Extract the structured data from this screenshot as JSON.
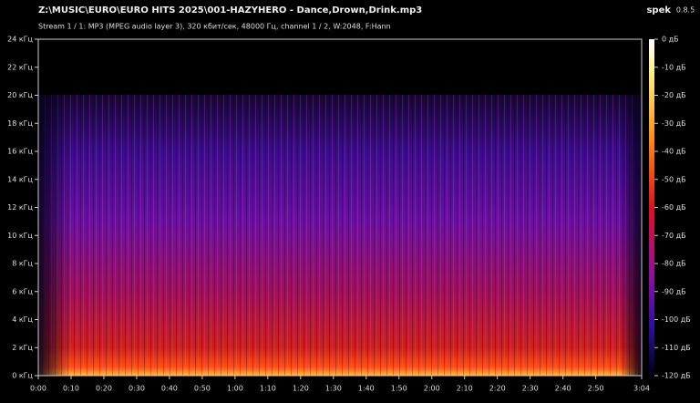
{
  "header": {
    "title": "Z:\\MUSIC\\EURO\\EURO HITS 2025\\001-HAZYHERO - Dance,Drown,Drink.mp3",
    "info": "Stream 1 / 1: MP3 (MPEG audio layer 3), 320 кбит/сек, 48000 Гц, channel 1 / 2, W:2048, F:Hann",
    "app": "spek",
    "version": "0.8.5"
  },
  "chart_data": {
    "type": "spectrogram",
    "xlim": [
      0,
      184
    ],
    "xticks": [
      {
        "value": 0,
        "label": "0:00"
      },
      {
        "value": 10,
        "label": "0:10"
      },
      {
        "value": 20,
        "label": "0:20"
      },
      {
        "value": 30,
        "label": "0:30"
      },
      {
        "value": 40,
        "label": "0:40"
      },
      {
        "value": 50,
        "label": "0:50"
      },
      {
        "value": 60,
        "label": "1:00"
      },
      {
        "value": 70,
        "label": "1:10"
      },
      {
        "value": 80,
        "label": "1:20"
      },
      {
        "value": 90,
        "label": "1:30"
      },
      {
        "value": 100,
        "label": "1:40"
      },
      {
        "value": 110,
        "label": "1:50"
      },
      {
        "value": 120,
        "label": "2:00"
      },
      {
        "value": 130,
        "label": "2:10"
      },
      {
        "value": 140,
        "label": "2:20"
      },
      {
        "value": 150,
        "label": "2:30"
      },
      {
        "value": 160,
        "label": "2:40"
      },
      {
        "value": 170,
        "label": "2:50"
      },
      {
        "value": 184,
        "label": "3:04"
      }
    ],
    "ylim": [
      0,
      24
    ],
    "yticks": [
      {
        "value": 0,
        "label": "0 кГц"
      },
      {
        "value": 2,
        "label": "2 кГц"
      },
      {
        "value": 4,
        "label": "4 кГц"
      },
      {
        "value": 6,
        "label": "6 кГц"
      },
      {
        "value": 8,
        "label": "8 кГц"
      },
      {
        "value": 10,
        "label": "10 кГц"
      },
      {
        "value": 12,
        "label": "12 кГц"
      },
      {
        "value": 14,
        "label": "14 кГц"
      },
      {
        "value": 16,
        "label": "16 кГц"
      },
      {
        "value": 18,
        "label": "18 кГц"
      },
      {
        "value": 20,
        "label": "20 кГц"
      },
      {
        "value": 22,
        "label": "22 кГц"
      },
      {
        "value": 24,
        "label": "24 кГц"
      }
    ],
    "zlim": [
      -120,
      0
    ],
    "zticks": [
      {
        "value": 0,
        "label": "0 дБ"
      },
      {
        "value": -10,
        "label": "-10 дБ"
      },
      {
        "value": -20,
        "label": "-20 дБ"
      },
      {
        "value": -30,
        "label": "-30 дБ"
      },
      {
        "value": -40,
        "label": "-40 дБ"
      },
      {
        "value": -50,
        "label": "-50 дБ"
      },
      {
        "value": -60,
        "label": "-60 дБ"
      },
      {
        "value": -70,
        "label": "-70 дБ"
      },
      {
        "value": -80,
        "label": "-80 дБ"
      },
      {
        "value": -90,
        "label": "-90 дБ"
      },
      {
        "value": -100,
        "label": "-100 дБ"
      },
      {
        "value": -110,
        "label": "-110 дБ"
      },
      {
        "value": -120,
        "label": "-120 дБ"
      }
    ]
  }
}
